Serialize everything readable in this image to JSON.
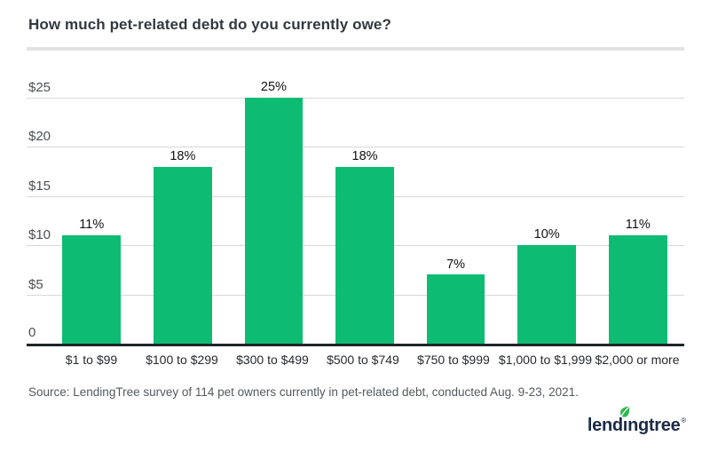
{
  "chart_data": {
    "type": "bar",
    "title": "How much pet-related debt do you currently owe?",
    "categories": [
      "$1 to $99",
      "$100 to $299",
      "$300 to $499",
      "$500 to $749",
      "$750 to $999",
      "$1,000 to $1,999",
      "$2,000 or more"
    ],
    "values": [
      11,
      18,
      25,
      18,
      7,
      10,
      11
    ],
    "value_labels": [
      "11%",
      "18%",
      "25%",
      "18%",
      "7%",
      "10%",
      "11%"
    ],
    "y_ticks": [
      "$25",
      "$20",
      "$15",
      "$10",
      "$5",
      "0"
    ],
    "xlabel": "",
    "ylabel": "",
    "ylim": [
      0,
      25
    ],
    "grid": true,
    "legend": "none",
    "bar_color": "#0dbc72"
  },
  "footer": {
    "source_text": "Source: LendingTree survey of 114 pet owners currently in pet-related debt, conducted Aug. 9-23, 2021.",
    "logo": {
      "part1": "lend",
      "dotless_i": "ı",
      "part2": "ngtree",
      "registered": "®",
      "wordmark_color": "#1b2a45",
      "leaf_color": "#2eb84c"
    }
  },
  "colors": {
    "bar": "#0dbc72",
    "grid_line": "#d8d8d8",
    "baseline": "#222527",
    "divider": "#e3e3e3"
  }
}
